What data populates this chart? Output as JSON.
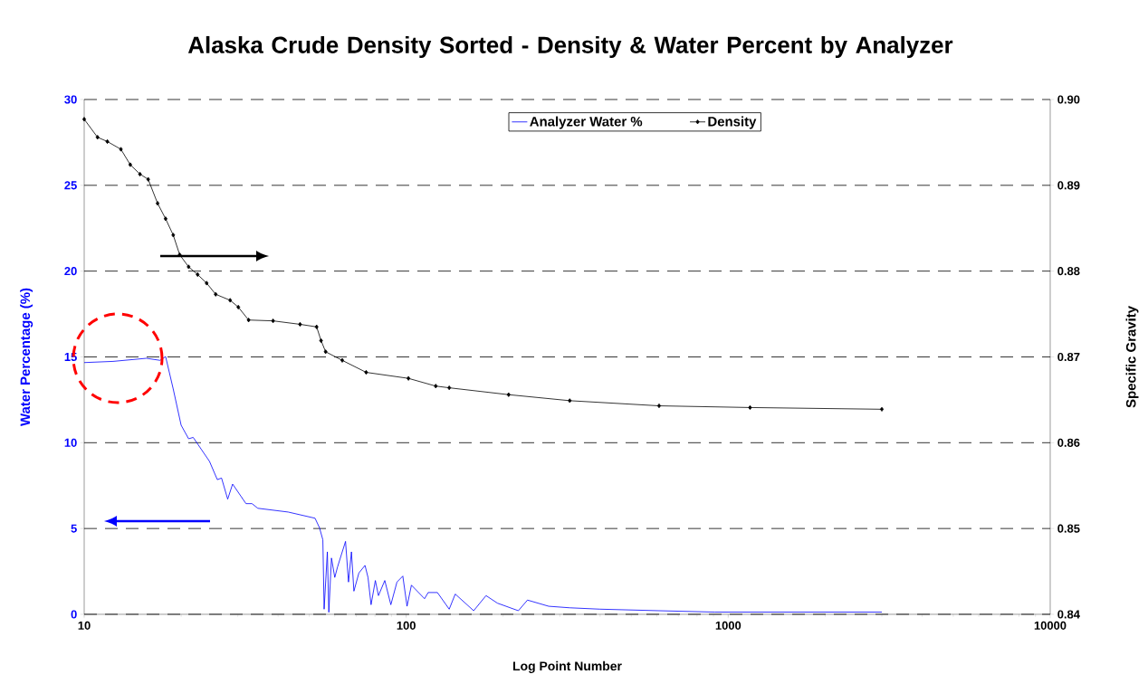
{
  "chart_data": {
    "type": "line",
    "title": "Alaska Crude Density Sorted - Density & Water Percent by Analyzer",
    "xlabel": "Log Point Number",
    "ylabel": "Water Percentage (%)",
    "y2label": "Specific Gravity",
    "log": "x",
    "xlim": [
      10,
      10000
    ],
    "xticks": [
      10,
      100,
      1000,
      10000
    ],
    "ylim": [
      0,
      30
    ],
    "yticks": [
      0,
      5,
      10,
      15,
      20,
      25,
      30
    ],
    "y2lim": [
      0.84,
      0.9
    ],
    "y2ticks": [
      0.84,
      0.85,
      0.86,
      0.87,
      0.88,
      0.89,
      {
        "value": 0.9,
        "label": "0.90"
      }
    ],
    "grid": "y",
    "legend": "top",
    "line_style": "solid",
    "series": [
      {
        "name": "Analyzer Water %",
        "color": "#0000ff",
        "marker": "none",
        "x": [
          10,
          12.3,
          15.6,
          17.2,
          17.9,
          18.9,
          20.0,
          21.1,
          21.8,
          24.5,
          25.9,
          26.7,
          27.9,
          28.9,
          31.8,
          33.2,
          34.6,
          43.0,
          52.1,
          53.8,
          55.1,
          55.6,
          56.9,
          57.5,
          58.6,
          60.0,
          61.2,
          64.8,
          66.2,
          67.6,
          68.8,
          71.3,
          74.5,
          76.1,
          77.8,
          80.2,
          82.0,
          85.8,
          89.6,
          93.6,
          97.6,
          100.6,
          103.8,
          114,
          117,
          125,
          136,
          142,
          162,
          177,
          192,
          223,
          238,
          277,
          322,
          400,
          610,
          910,
          3000
        ],
        "values": [
          14.67,
          14.74,
          14.92,
          14.8,
          15.02,
          13.13,
          11.02,
          10.23,
          10.31,
          8.91,
          7.85,
          7.94,
          6.71,
          7.59,
          6.45,
          6.45,
          6.18,
          5.96,
          5.6,
          5.04,
          4.34,
          0.3,
          3.64,
          0.12,
          3.28,
          2.15,
          2.76,
          4.25,
          1.88,
          3.64,
          1.35,
          2.41,
          2.85,
          2.15,
          0.56,
          1.97,
          1.09,
          1.97,
          0.56,
          1.88,
          2.23,
          0.47,
          1.7,
          0.91,
          1.27,
          1.27,
          0.3,
          1.18,
          0.21,
          1.09,
          0.65,
          0.21,
          0.83,
          0.47,
          0.38,
          0.3,
          0.21,
          0.13,
          0.13
        ]
      },
      {
        "name": "Density",
        "color": "#000000",
        "marker": "diamond",
        "axis": "y2",
        "x": [
          10,
          11.0,
          11.8,
          13.0,
          13.9,
          14.9,
          15.8,
          16.9,
          17.9,
          18.9,
          19.8,
          21.1,
          22.5,
          24.0,
          25.6,
          28.4,
          30.1,
          32.4,
          38.6,
          46.8,
          52.7,
          54.4,
          56.2,
          63.3,
          75.1,
          101.6,
          123.5,
          136,
          208,
          322,
          610,
          1169,
          3000
        ],
        "values": [
          0.8977,
          0.8956,
          0.8951,
          0.8942,
          0.8924,
          0.8913,
          0.8907,
          0.8879,
          0.8861,
          0.8842,
          0.8819,
          0.8805,
          0.8796,
          0.8786,
          0.8773,
          0.8766,
          0.8758,
          0.8743,
          0.8742,
          0.8738,
          0.8735,
          0.8719,
          0.8706,
          0.8696,
          0.8682,
          0.8675,
          0.8666,
          0.8664,
          0.8656,
          0.8649,
          0.8643,
          0.8641,
          0.8639
        ]
      }
    ]
  }
}
